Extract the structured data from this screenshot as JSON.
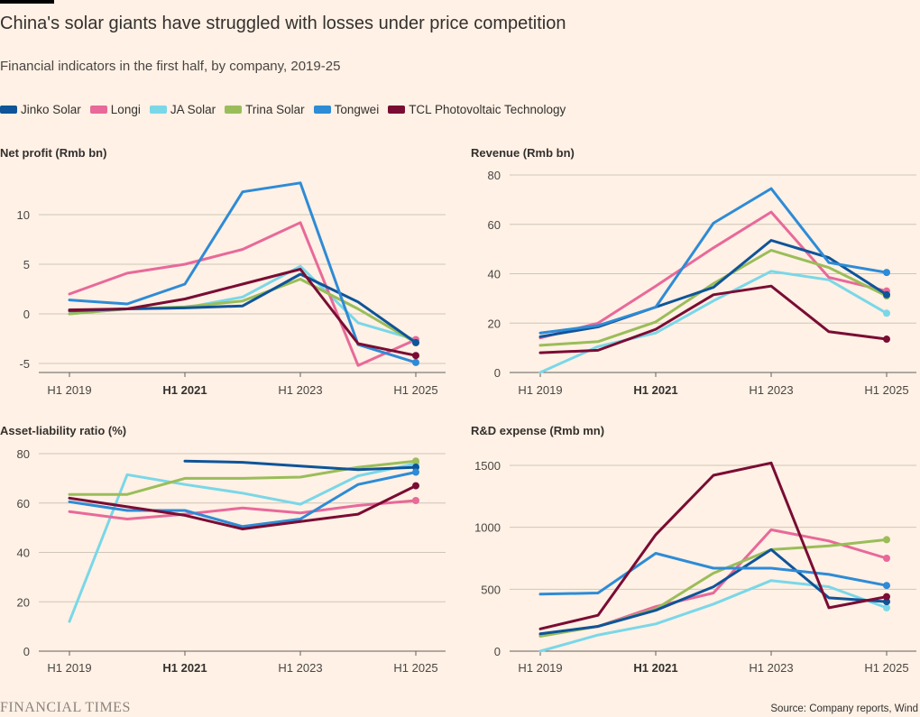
{
  "header": {
    "title": "China's solar giants have struggled with losses under price competition",
    "subtitle": "Financial indicators in the first half, by company, 2019-25"
  },
  "legend": [
    {
      "name": "Jinko Solar",
      "color": "#0F5499"
    },
    {
      "name": "Longi",
      "color": "#E8699A"
    },
    {
      "name": "JA Solar",
      "color": "#7AD7E8"
    },
    {
      "name": "Trina Solar",
      "color": "#9ABD59"
    },
    {
      "name": "Tongwei",
      "color": "#2E8BD6"
    },
    {
      "name": "TCL Photovoltaic Technology",
      "color": "#7A0C34"
    }
  ],
  "footer": {
    "logo": "FINANCIAL TIMES",
    "source": "Source: Company reports, Wind"
  },
  "chart_data": [
    {
      "type": "line",
      "title": "Net profit (Rmb bn)",
      "x": [
        "H1 2019",
        "H1 2020",
        "H1 2021",
        "H1 2022",
        "H1 2023",
        "H1 2024",
        "H1 2025"
      ],
      "x_tick_labels": [
        "H1 2019",
        "H1 2021",
        "H1 2023",
        "H1 2025"
      ],
      "bold_tick": "H1 2021",
      "ylim": [
        -6,
        13.5
      ],
      "yticks": [
        -5,
        0,
        5,
        10
      ],
      "series": [
        {
          "name": "Jinko Solar",
          "values": [
            0.3,
            0.5,
            0.6,
            0.8,
            4.0,
            1.2,
            -2.9
          ]
        },
        {
          "name": "Longi",
          "values": [
            2.0,
            4.1,
            5.0,
            6.5,
            9.2,
            -5.2,
            -2.6
          ]
        },
        {
          "name": "JA Solar",
          "values": [
            0.0,
            0.5,
            0.6,
            1.7,
            4.8,
            -0.9,
            -2.6
          ]
        },
        {
          "name": "Trina Solar",
          "values": [
            0.0,
            0.5,
            0.7,
            1.3,
            3.5,
            0.5,
            -2.9
          ]
        },
        {
          "name": "Tongwei",
          "values": [
            1.4,
            1.0,
            3.0,
            12.3,
            13.2,
            -3.1,
            -4.9
          ]
        },
        {
          "name": "TCL Photovoltaic Technology",
          "values": [
            0.4,
            0.5,
            1.5,
            3.0,
            4.5,
            -3.0,
            -4.2
          ]
        }
      ]
    },
    {
      "type": "line",
      "title": "Revenue (Rmb bn)",
      "x": [
        "H1 2019",
        "H1 2020",
        "H1 2021",
        "H1 2022",
        "H1 2023",
        "H1 2024",
        "H1 2025"
      ],
      "x_tick_labels": [
        "H1 2019",
        "H1 2021",
        "H1 2023",
        "H1 2025"
      ],
      "bold_tick": "H1 2021",
      "ylim": [
        0,
        80
      ],
      "yticks": [
        0,
        20,
        40,
        60,
        80
      ],
      "series": [
        {
          "name": "Jinko Solar",
          "values": [
            14.5,
            18.5,
            26.5,
            34.5,
            53.5,
            46.5,
            31.5
          ]
        },
        {
          "name": "Longi",
          "values": [
            14.0,
            20.0,
            35.0,
            50.5,
            65.0,
            38.5,
            33.0
          ]
        },
        {
          "name": "JA Solar",
          "values": [
            0,
            10.5,
            16.0,
            29.0,
            41.0,
            37.5,
            24.0
          ]
        },
        {
          "name": "Trina Solar",
          "values": [
            11.0,
            12.5,
            20.5,
            36.0,
            49.5,
            42.5,
            31.0
          ]
        },
        {
          "name": "Tongwei",
          "values": [
            16.0,
            19.0,
            26.5,
            60.5,
            74.5,
            44.5,
            40.5
          ]
        },
        {
          "name": "TCL Photovoltaic Technology",
          "values": [
            8.0,
            9.0,
            17.5,
            31.5,
            35.0,
            16.5,
            13.5
          ]
        }
      ]
    },
    {
      "type": "line",
      "title": "Asset-liability ratio (%)",
      "x": [
        "H1 2019",
        "H1 2020",
        "H1 2021",
        "H1 2022",
        "H1 2023",
        "H1 2024",
        "H1 2025"
      ],
      "x_tick_labels": [
        "H1 2019",
        "H1 2021",
        "H1 2023",
        "H1 2025"
      ],
      "bold_tick": "H1 2021",
      "ylim": [
        0,
        82
      ],
      "yticks": [
        0,
        20,
        40,
        60,
        80
      ],
      "series": [
        {
          "name": "Jinko Solar",
          "values": [
            null,
            null,
            77.0,
            76.5,
            75.0,
            73.5,
            74.5
          ]
        },
        {
          "name": "Longi",
          "values": [
            56.5,
            53.5,
            55.5,
            58.0,
            56.0,
            59.0,
            61.0
          ]
        },
        {
          "name": "JA Solar",
          "values": [
            12.0,
            71.5,
            67.5,
            64.0,
            59.5,
            71.0,
            76.0
          ]
        },
        {
          "name": "Trina Solar",
          "values": [
            63.5,
            63.5,
            70.0,
            70.0,
            70.5,
            74.5,
            77.0
          ]
        },
        {
          "name": "Tongwei",
          "values": [
            60.5,
            57.0,
            57.0,
            50.5,
            53.5,
            67.5,
            72.5
          ]
        },
        {
          "name": "TCL Photovoltaic Technology",
          "values": [
            62.0,
            58.5,
            55.0,
            49.5,
            52.5,
            55.5,
            67.0
          ]
        }
      ]
    },
    {
      "type": "line",
      "title": "R&D expense (Rmb mn)",
      "x": [
        "H1 2019",
        "H1 2020",
        "H1 2021",
        "H1 2022",
        "H1 2023",
        "H1 2024",
        "H1 2025"
      ],
      "x_tick_labels": [
        "H1 2019",
        "H1 2021",
        "H1 2023",
        "H1 2025"
      ],
      "bold_tick": "H1 2021",
      "ylim": [
        0,
        1580
      ],
      "yticks": [
        0,
        500,
        1000,
        1500
      ],
      "series": [
        {
          "name": "Jinko Solar",
          "values": [
            140,
            200,
            330,
            520,
            820,
            430,
            400
          ]
        },
        {
          "name": "Longi",
          "values": [
            130,
            200,
            360,
            470,
            980,
            890,
            750
          ]
        },
        {
          "name": "JA Solar",
          "values": [
            0,
            130,
            220,
            380,
            570,
            520,
            350
          ]
        },
        {
          "name": "Trina Solar",
          "values": [
            120,
            200,
            340,
            630,
            820,
            850,
            900
          ]
        },
        {
          "name": "Tongwei",
          "values": [
            460,
            470,
            790,
            670,
            670,
            620,
            530
          ]
        },
        {
          "name": "TCL Photovoltaic Technology",
          "values": [
            180,
            290,
            940,
            1420,
            1520,
            350,
            440
          ]
        }
      ]
    }
  ]
}
